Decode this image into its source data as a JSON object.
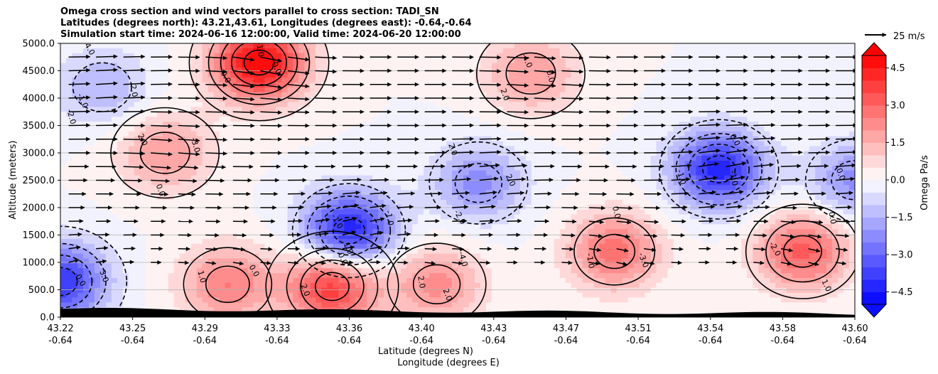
{
  "chart_data": {
    "type": "heatmap",
    "title_lines": [
      "Omega cross section and wind vectors parallel to cross section: TADI_SN",
      "Latitudes (degrees north): 43.21,43.61, Longitudes (degrees east): -0.64,-0.64",
      "Simulation start time: 2024-06-16 12:00:00, Valid time: 2024-06-20 12:00:00"
    ],
    "ylabel": "Altitude (meters)",
    "xlabel_lines": [
      "Latitude (degrees N)",
      "Longitude (degrees E)"
    ],
    "ylim": [
      0,
      5000
    ],
    "y_ticks": [
      "0.0",
      "500.0",
      "1000.0",
      "1500.0",
      "2000.0",
      "2500.0",
      "3000.0",
      "3500.0",
      "4000.0",
      "4500.0",
      "5000.0"
    ],
    "x_ticks": [
      {
        "lat": "43.22",
        "lon": "-0.64"
      },
      {
        "lat": "43.25",
        "lon": "-0.64"
      },
      {
        "lat": "43.29",
        "lon": "-0.64"
      },
      {
        "lat": "43.33",
        "lon": "-0.64"
      },
      {
        "lat": "43.36",
        "lon": "-0.64"
      },
      {
        "lat": "43.40",
        "lon": "-0.64"
      },
      {
        "lat": "43.43",
        "lon": "-0.64"
      },
      {
        "lat": "43.47",
        "lon": "-0.64"
      },
      {
        "lat": "43.51",
        "lon": "-0.64"
      },
      {
        "lat": "43.54",
        "lon": "-0.64"
      },
      {
        "lat": "43.58",
        "lon": "-0.64"
      },
      {
        "lat": "43.60",
        "lon": "-0.64"
      }
    ],
    "colorbar": {
      "label": "Omega Pa/s",
      "range": [
        -5,
        5
      ],
      "ticks": [
        "4.5",
        "3.0",
        "1.5",
        "0.0",
        "−1.5",
        "−3.0",
        "−4.5"
      ],
      "tick_values": [
        4.5,
        3.0,
        1.5,
        0.0,
        -1.5,
        -3.0,
        -4.5
      ],
      "colormap": "bwr",
      "extend": "both"
    },
    "quiver_key": "25 m/s",
    "grid": "horizontal",
    "omega_centers": [
      {
        "lat": 43.22,
        "alt": 650,
        "value": -4.0
      },
      {
        "lat": 43.24,
        "alt": 4200,
        "value": -1.5
      },
      {
        "lat": 43.315,
        "alt": 4650,
        "value": 5.0
      },
      {
        "lat": 43.35,
        "alt": 560,
        "value": 4.0
      },
      {
        "lat": 43.4,
        "alt": 600,
        "value": 2.2
      },
      {
        "lat": 43.3,
        "alt": 600,
        "value": 2.5
      },
      {
        "lat": 43.358,
        "alt": 1580,
        "value": -4.5
      },
      {
        "lat": 43.42,
        "alt": 2450,
        "value": -2.2
      },
      {
        "lat": 43.445,
        "alt": 4450,
        "value": 2.0
      },
      {
        "lat": 43.485,
        "alt": 1200,
        "value": 2.8
      },
      {
        "lat": 43.535,
        "alt": 2700,
        "value": -4.3
      },
      {
        "lat": 43.575,
        "alt": 1200,
        "value": 3.2
      },
      {
        "lat": 43.6,
        "alt": 2500,
        "value": -2.2
      },
      {
        "lat": 43.27,
        "alt": 3000,
        "value": 2.0
      }
    ],
    "contour_labels": [
      "0.0",
      "-1.0",
      "2.0",
      "4.0",
      "2.0",
      "0.0",
      "0.0",
      "2.0",
      "0.0",
      "-1.0",
      "0.0",
      "1.0",
      "0.0",
      "-3.0",
      "-4.0",
      "4.0",
      "0.0",
      "2.0",
      "-4.0",
      "-2.0",
      "-1.0",
      "2.0",
      "2.0",
      "0.0",
      "-1.0",
      "-2.0",
      "-2.0",
      "0.0",
      "4.0",
      "2.0",
      "0.0",
      "1.0",
      "2.0",
      "1.0",
      "-1.0",
      "-2.0",
      "-4.0",
      "-3.0",
      "-1.0",
      "0.0",
      "1.0",
      "2.0",
      "3.0",
      "-2.0",
      "-1.0"
    ]
  }
}
